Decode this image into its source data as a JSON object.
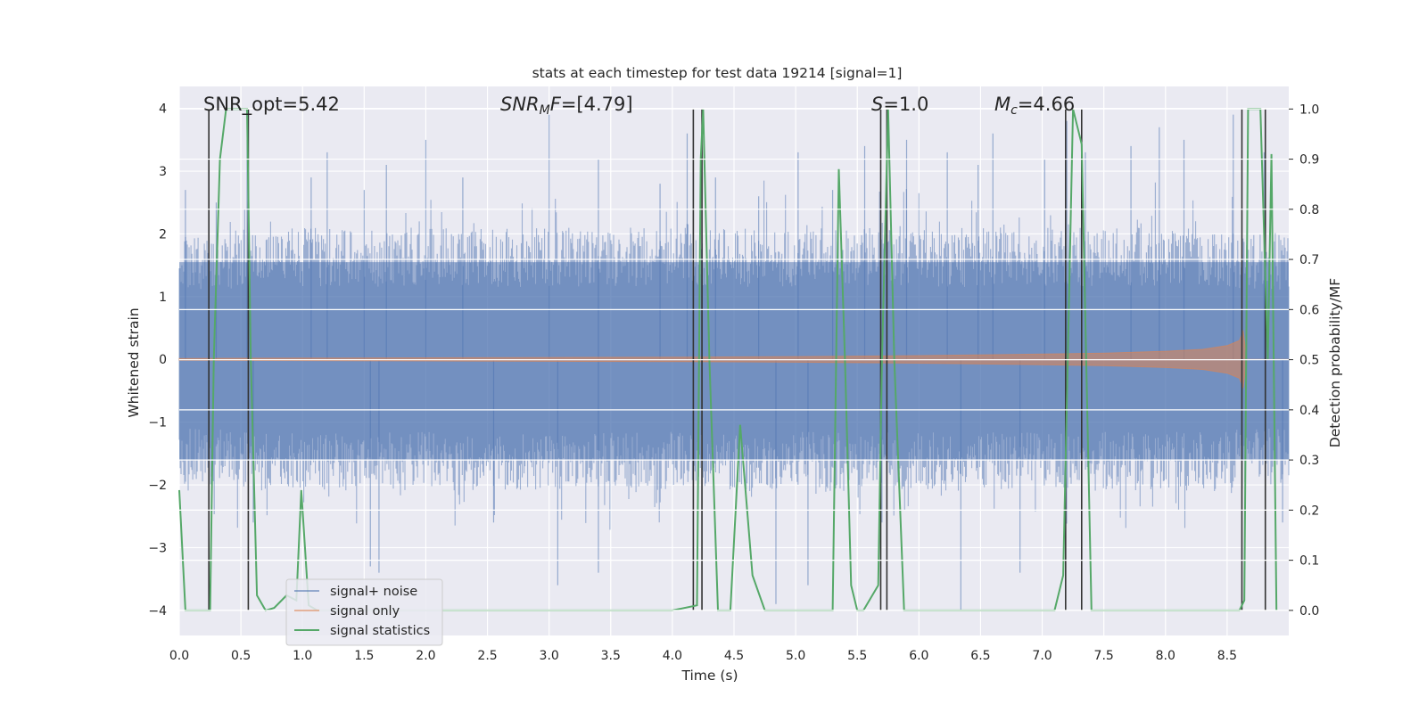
{
  "chart_data": {
    "type": "line",
    "title": "stats at each timestep for test data 19214 [signal=1]",
    "xlabel": "Time (s)",
    "ylabel": "Whitened strain",
    "ylabel_right": "Detection probability/MF",
    "xlim": [
      0.0,
      9.0
    ],
    "ylim": [
      -4.4,
      4.35
    ],
    "ylim_right": [
      -0.05,
      1.045
    ],
    "xticks": [
      "0.0",
      "0.5",
      "1.0",
      "1.5",
      "2.0",
      "2.5",
      "3.0",
      "3.5",
      "4.0",
      "4.5",
      "5.0",
      "5.5",
      "6.0",
      "6.5",
      "7.0",
      "7.5",
      "8.0",
      "8.5"
    ],
    "yticks_left": [
      "−4",
      "−3",
      "−2",
      "−1",
      "0",
      "1",
      "2",
      "3",
      "4"
    ],
    "yticks_right": [
      "0.0",
      "0.1",
      "0.2",
      "0.3",
      "0.4",
      "0.5",
      "0.6",
      "0.7",
      "0.8",
      "0.9",
      "1.0"
    ],
    "grid": true,
    "annotations": [
      {
        "text": "SNR_opt=5.42",
        "x": 0.2,
        "y": 4.0
      },
      {
        "text": "SNR_MF=[4.79]",
        "x": 2.6,
        "y": 4.0
      },
      {
        "text": "S=1.0",
        "x": 5.6,
        "y": 4.0
      },
      {
        "text": "M_c=4.66",
        "x": 6.6,
        "y": 4.0
      }
    ],
    "noise_envelope": {
      "upper": [
        2.0,
        2.1,
        2.1,
        2.1,
        2.1,
        2.1,
        2.1,
        2.1,
        2.1,
        2.1,
        2.1,
        2.1,
        2.1,
        2.1,
        2.1,
        2.1,
        2.1,
        2.1,
        2.1,
        2.0
      ],
      "lower": [
        -2.0,
        -2.1,
        -2.1,
        -2.1,
        -2.1,
        -2.1,
        -2.1,
        -2.1,
        -2.1,
        -2.1,
        -2.1,
        -2.1,
        -2.1,
        -2.1,
        -2.1,
        -2.1,
        -2.1,
        -2.1,
        -2.1,
        -2.0
      ],
      "spikes": [
        [
          0.05,
          2.7
        ],
        [
          0.3,
          2.5
        ],
        [
          0.55,
          3.5
        ],
        [
          0.6,
          -2.6
        ],
        [
          1.07,
          2.9
        ],
        [
          1.2,
          3.3
        ],
        [
          1.5,
          2.7
        ],
        [
          1.68,
          3.1
        ],
        [
          1.55,
          -3.3
        ],
        [
          1.62,
          -3.4
        ],
        [
          2.0,
          3.5
        ],
        [
          2.3,
          2.9
        ],
        [
          2.55,
          -2.6
        ],
        [
          3.0,
          3.9
        ],
        [
          3.07,
          -3.6
        ],
        [
          3.4,
          3.2
        ],
        [
          3.4,
          -3.4
        ],
        [
          3.9,
          2.8
        ],
        [
          4.12,
          3.6
        ],
        [
          4.35,
          2.9
        ],
        [
          4.7,
          2.6
        ],
        [
          4.84,
          -3.9
        ],
        [
          5.02,
          3.3
        ],
        [
          5.1,
          -3.6
        ],
        [
          5.3,
          2.7
        ],
        [
          5.56,
          3.4
        ],
        [
          5.7,
          -2.6
        ],
        [
          5.9,
          3.5
        ],
        [
          6.23,
          3.3
        ],
        [
          6.34,
          -4.0
        ],
        [
          6.48,
          3.1
        ],
        [
          6.6,
          3.6
        ],
        [
          6.82,
          -3.4
        ],
        [
          7.02,
          3.2
        ],
        [
          7.2,
          3.8
        ],
        [
          7.35,
          3.3
        ],
        [
          7.72,
          3.4
        ],
        [
          7.95,
          3.7
        ],
        [
          8.15,
          3.5
        ],
        [
          8.55,
          3.9
        ],
        [
          8.62,
          -3.2
        ],
        [
          8.8,
          3.3
        ],
        [
          8.95,
          -2.6
        ]
      ]
    },
    "signal_envelope": {
      "x": [
        0.0,
        1.0,
        2.0,
        3.0,
        4.0,
        5.0,
        6.0,
        7.0,
        7.5,
        8.0,
        8.3,
        8.5,
        8.6,
        8.63,
        8.66,
        9.0
      ],
      "amp": [
        0.015,
        0.02,
        0.025,
        0.03,
        0.035,
        0.045,
        0.06,
        0.085,
        0.1,
        0.13,
        0.16,
        0.22,
        0.3,
        0.45,
        0.0,
        0.0
      ]
    },
    "series": [
      {
        "name": "signal statistics",
        "x": [
          0.0,
          0.05,
          0.25,
          0.28,
          0.33,
          0.38,
          0.43,
          0.55,
          0.58,
          0.63,
          0.7,
          0.77,
          0.87,
          0.95,
          0.99,
          1.05,
          1.12,
          1.2,
          4.0,
          4.2,
          4.23,
          4.25,
          4.3,
          4.37,
          4.47,
          4.55,
          4.65,
          4.75,
          5.3,
          5.35,
          5.4,
          5.45,
          5.5,
          5.55,
          5.67,
          5.7,
          5.75,
          5.8,
          5.88,
          7.1,
          7.17,
          7.25,
          7.32,
          7.4,
          8.6,
          8.64,
          8.67,
          8.71,
          8.77,
          8.83,
          8.86,
          8.9
        ],
        "y": [
          0.24,
          0.0,
          0.0,
          0.5,
          0.9,
          1.0,
          1.0,
          1.0,
          0.5,
          0.03,
          0.0,
          0.005,
          0.03,
          0.02,
          0.24,
          0.01,
          0.0,
          0.0,
          0.0,
          0.01,
          0.9,
          1.0,
          0.5,
          0.0,
          0.0,
          0.37,
          0.07,
          0.0,
          0.0,
          0.88,
          0.5,
          0.05,
          0.0,
          0.0,
          0.05,
          0.5,
          1.0,
          0.5,
          0.0,
          0.0,
          0.07,
          1.0,
          0.93,
          0.0,
          0.0,
          0.02,
          1.0,
          1.0,
          1.0,
          0.5,
          0.91,
          0.0
        ]
      }
    ],
    "vlines": [
      0.24,
      0.56,
      4.17,
      4.24,
      5.69,
      5.74,
      7.19,
      7.32,
      8.62,
      8.81
    ],
    "legend": [
      "signal+ noise",
      "signal only",
      "signal statistics"
    ],
    "legend_position": "lower-left"
  },
  "colors": {
    "background": "#eaeaf2",
    "grid": "#ffffff",
    "noise": "#4c72b0",
    "signal": "#dd8452",
    "stat": "#55a868",
    "vline": "#333333"
  }
}
